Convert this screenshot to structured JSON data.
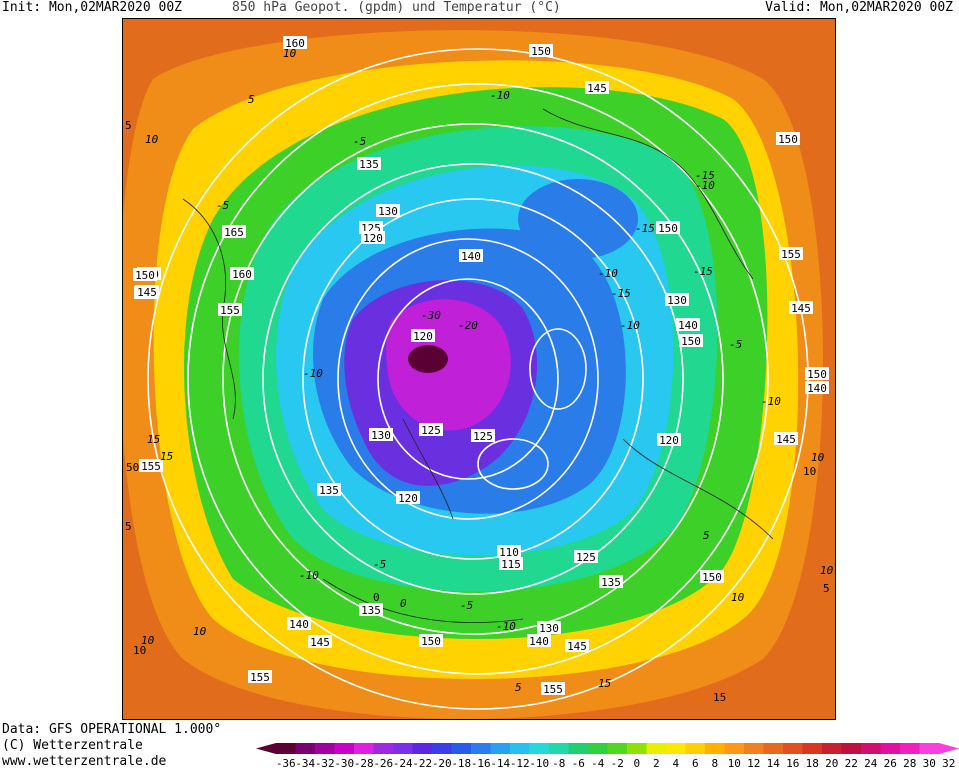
{
  "header": {
    "init": "Init: Mon,02MAR2020 00Z",
    "title": "850 hPa Geopot. (gpdm) und Temperatur (°C)",
    "valid": "Valid: Mon,02MAR2020 00Z"
  },
  "footer": {
    "data": "Data: GFS OPERATIONAL 1.000°",
    "copyright": "(C) Wetterzentrale",
    "url": "www.wetterzentrale.de"
  },
  "legend": {
    "ticks": [
      "-36",
      "-34",
      "-32",
      "-30",
      "-28",
      "-26",
      "-24",
      "-22",
      "-20",
      "-18",
      "-16",
      "-14",
      "-12",
      "-10",
      "-8",
      "-6",
      "-4",
      "-2",
      "0",
      "2",
      "4",
      "6",
      "8",
      "10",
      "12",
      "14",
      "16",
      "18",
      "20",
      "22",
      "24",
      "26",
      "28",
      "30",
      "32"
    ],
    "colors": [
      "#5a0032",
      "#7a0070",
      "#a000a0",
      "#c800c8",
      "#e020e0",
      "#a028e0",
      "#7a30e8",
      "#5a28e0",
      "#3c3ce8",
      "#2a5ae8",
      "#2a7cf0",
      "#2aa0f0",
      "#28c0f0",
      "#28d8d8",
      "#20d8a8",
      "#20d070",
      "#30d040",
      "#50d820",
      "#90e000",
      "#e8f000",
      "#ffe800",
      "#ffd000",
      "#ffb000",
      "#ff9818",
      "#f08020",
      "#e86820",
      "#e05020",
      "#d83820",
      "#c82030",
      "#c01040",
      "#d01070",
      "#e010a0",
      "#f020c0",
      "#f840e0"
    ]
  },
  "map": {
    "height_labels": [
      "160",
      "150",
      "135",
      "145",
      "125",
      "120",
      "130",
      "140",
      "165",
      "150",
      "145",
      "160",
      "155",
      "120",
      "125",
      "125",
      "140",
      "150",
      "150",
      "155",
      "145",
      "150",
      "150",
      "140",
      "145",
      "130",
      "135",
      "120",
      "110",
      "115",
      "125",
      "135",
      "150",
      "130",
      "140",
      "145",
      "150",
      "155",
      "155",
      "145",
      "140",
      "135",
      "145",
      "150",
      "155",
      "120",
      "130"
    ],
    "temperature_labels": [
      "10",
      "5",
      "10",
      "-10",
      "-5",
      "-15",
      "-30",
      "-10",
      "-5",
      "-10",
      "-15",
      "-10",
      "-15",
      "-10",
      "-5",
      "-10",
      "10",
      "15",
      "10",
      "10",
      "10",
      "5",
      "5",
      "15",
      "10",
      "0",
      "-10",
      "-5",
      "-5",
      "-10",
      "15",
      "-15",
      "-20"
    ],
    "edge_labels": [
      "5",
      "0",
      "5",
      "5",
      "15",
      "10",
      "10",
      "50"
    ]
  }
}
